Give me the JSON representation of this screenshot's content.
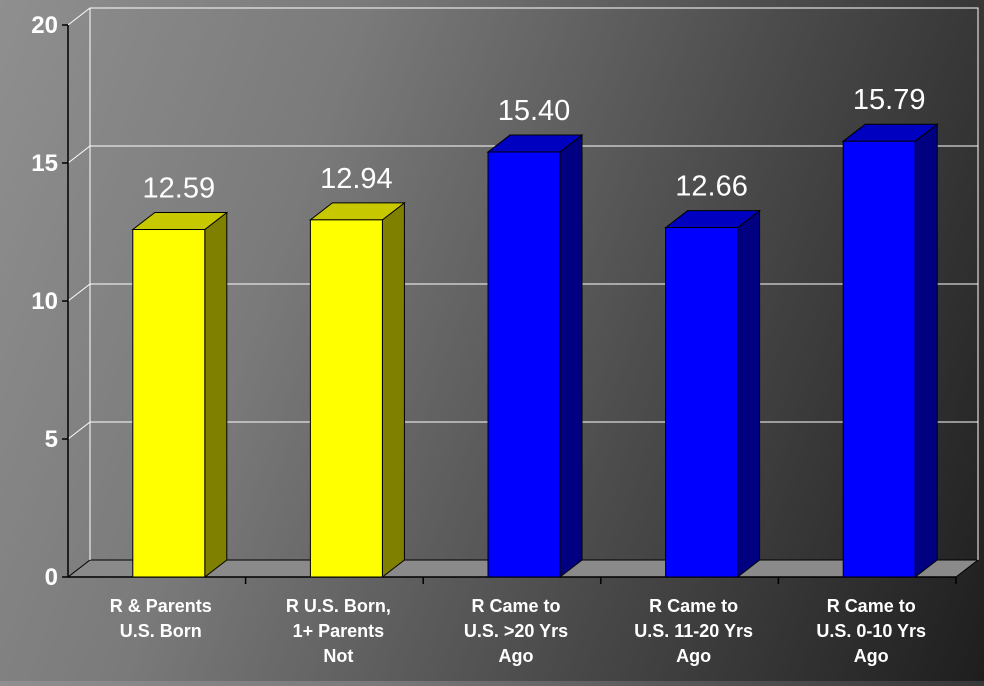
{
  "chart_data": {
    "type": "bar",
    "categories": [
      [
        "R & Parents",
        "U.S. Born"
      ],
      [
        "R U.S. Born,",
        "1+ Parents",
        "Not"
      ],
      [
        "R Came to",
        "U.S. >20 Yrs",
        "Ago"
      ],
      [
        "R Came to",
        "U.S. 11-20 Yrs",
        "Ago"
      ],
      [
        "R Came to",
        "U.S. 0-10 Yrs",
        "Ago"
      ]
    ],
    "values": [
      12.59,
      12.94,
      15.4,
      12.66,
      15.79
    ],
    "value_labels": [
      "12.59",
      "12.94",
      "15.40",
      "12.66",
      "15.79"
    ],
    "bar_colors": [
      "#ffff00",
      "#ffff00",
      "#0000ff",
      "#0000ff",
      "#0000ff"
    ],
    "bar_shade_colors": [
      "#808000",
      "#808000",
      "#000080",
      "#000080",
      "#000080"
    ],
    "bar_top_colors": [
      "#c8c800",
      "#c8c800",
      "#0000c0",
      "#0000c0",
      "#0000c0"
    ],
    "yticks": [
      "0",
      "5",
      "10",
      "15",
      "20"
    ],
    "ylim": [
      0,
      20
    ],
    "grid": true,
    "style": "3d"
  }
}
